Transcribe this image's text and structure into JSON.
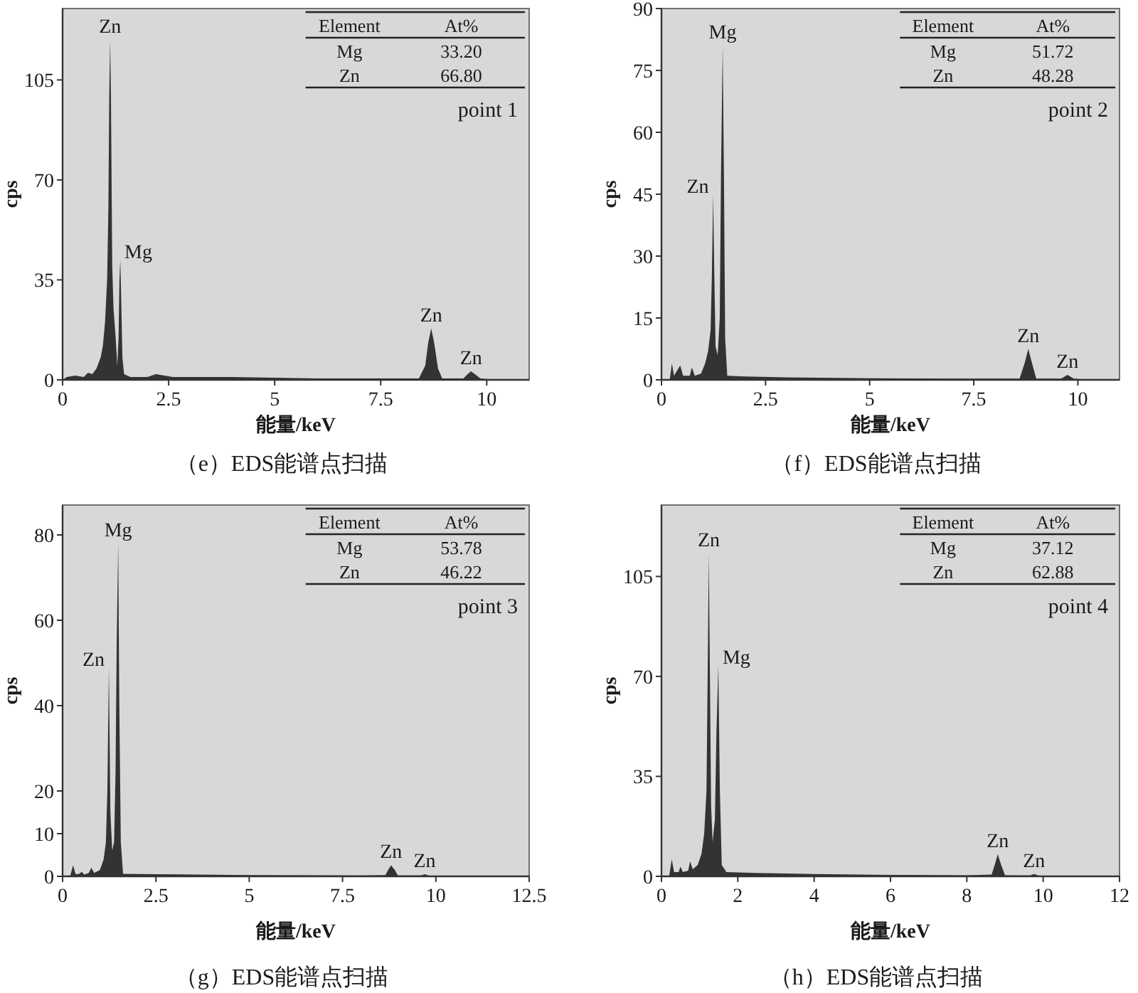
{
  "chart_data": [
    {
      "type": "area",
      "title": "（e）EDS能谱点扫描",
      "xlabel": "能量/keV",
      "ylabel": "cps",
      "color": "#333333",
      "xlim": [
        0,
        11
      ],
      "ylim": [
        0,
        130
      ],
      "xticks": [
        0,
        2.5,
        5,
        7.5,
        10
      ],
      "yticks": [
        0,
        35,
        70,
        105
      ],
      "x": [
        0,
        0.1,
        0.3,
        0.5,
        0.6,
        0.7,
        0.8,
        0.9,
        0.95,
        1.0,
        1.05,
        1.08,
        1.1,
        1.12,
        1.14,
        1.17,
        1.2,
        1.25,
        1.29,
        1.32,
        1.34,
        1.36,
        1.38,
        1.41,
        1.45,
        1.6,
        2.0,
        2.2,
        2.4,
        2.6,
        4,
        6,
        8.4,
        8.55,
        8.62,
        8.69,
        8.76,
        8.85,
        8.95,
        9.45,
        9.55,
        9.63,
        9.72,
        9.85,
        10.2
      ],
      "values": [
        0,
        1,
        1.5,
        1,
        2.5,
        2,
        4,
        8,
        12,
        20,
        35,
        60,
        100,
        119,
        100,
        40,
        25,
        15,
        5,
        15,
        35,
        42,
        30,
        8,
        2,
        1,
        1,
        2,
        1.5,
        1,
        1,
        0.5,
        0.5,
        5,
        13,
        18,
        13,
        4,
        0.5,
        0.5,
        2,
        3,
        2,
        0.5,
        0
      ],
      "annotations": [
        {
          "text": "Zn",
          "x": 1.12,
          "y": 119
        },
        {
          "text": "Mg",
          "x": 1.36,
          "y": 42
        },
        {
          "text": "Zn",
          "x": 8.69,
          "y": 18
        },
        {
          "text": "Zn",
          "x": 9.63,
          "y": 3
        },
        "Element",
        "At%",
        "Mg",
        "33.20",
        "Zn",
        "66.80",
        "point 1"
      ]
    },
    {
      "type": "area",
      "title": "（f）EDS能谱点扫描",
      "xlabel": "能量/keV",
      "ylabel": "cps",
      "color": "#333333",
      "xlim": [
        0,
        11
      ],
      "ylim": [
        0,
        90
      ],
      "xticks": [
        0,
        2.5,
        5,
        7.5,
        10
      ],
      "yticks": [
        0,
        15,
        30,
        45,
        60,
        75,
        90
      ],
      "x": [
        0.2,
        0.25,
        0.3,
        0.45,
        0.52,
        0.68,
        0.73,
        0.8,
        0.95,
        1.05,
        1.12,
        1.18,
        1.21,
        1.24,
        1.27,
        1.3,
        1.35,
        1.4,
        1.43,
        1.47,
        1.5,
        1.53,
        1.58,
        2.0,
        3,
        5,
        7,
        8.6,
        8.72,
        8.81,
        8.9,
        9.0,
        9.6,
        9.75,
        9.9,
        10.3
      ],
      "values": [
        0,
        4,
        1,
        3.5,
        1,
        1,
        3,
        1,
        1.5,
        4,
        7,
        12,
        25,
        45,
        25,
        8,
        6,
        15,
        50,
        81,
        50,
        10,
        1,
        0.8,
        0.6,
        0.4,
        0.3,
        0.3,
        4,
        7.5,
        4,
        0.3,
        0.3,
        1.2,
        0.3,
        0
      ],
      "annotations": [
        {
          "text": "Zn",
          "x": 1.24,
          "y": 45
        },
        {
          "text": "Mg",
          "x": 1.47,
          "y": 81
        },
        {
          "text": "Zn",
          "x": 8.81,
          "y": 7.5
        },
        {
          "text": "Zn",
          "x": 9.75,
          "y": 1.2
        },
        "Element",
        "At%",
        "Mg",
        "51.72",
        "Zn",
        "48.28",
        "point 2"
      ]
    },
    {
      "type": "area",
      "title": "（g）EDS能谱点扫描",
      "xlabel": "能量/keV",
      "ylabel": "cps",
      "color": "#333333",
      "xlim": [
        0,
        12.5
      ],
      "ylim": [
        0,
        87
      ],
      "xticks": [
        0,
        2.5,
        5,
        7.5,
        10,
        12.5
      ],
      "yticks": [
        0,
        10,
        20,
        40,
        60,
        80
      ],
      "x": [
        0.2,
        0.28,
        0.35,
        0.45,
        0.51,
        0.58,
        0.7,
        0.77,
        0.85,
        1.0,
        1.1,
        1.16,
        1.2,
        1.24,
        1.28,
        1.33,
        1.38,
        1.42,
        1.45,
        1.49,
        1.52,
        1.56,
        1.62,
        2.5,
        5,
        8,
        8.65,
        8.72,
        8.8,
        8.9,
        8.98,
        9.6,
        9.7,
        9.85,
        10.2
      ],
      "values": [
        0,
        2.6,
        0.5,
        0.6,
        1.1,
        0.4,
        0.8,
        2,
        0.8,
        1.5,
        4,
        8,
        20,
        49,
        15,
        6,
        8,
        25,
        55,
        78,
        40,
        8,
        0.6,
        0.5,
        0.3,
        0.2,
        0.3,
        1.5,
        2.6,
        1.5,
        0.2,
        0.2,
        0.5,
        0.1,
        0
      ],
      "annotations": [
        {
          "text": "Zn",
          "x": 1.24,
          "y": 49
        },
        {
          "text": "Mg",
          "x": 1.49,
          "y": 78
        },
        {
          "text": "Zn",
          "x": 8.8,
          "y": 2.6
        },
        {
          "text": "Zn",
          "x": 9.7,
          "y": 0.5
        },
        "Element",
        "At%",
        "Mg",
        "53.78",
        "Zn",
        "46.22",
        "point 3"
      ]
    },
    {
      "type": "area",
      "title": "（h）EDS能谱点扫描",
      "xlabel": "能量/keV",
      "ylabel": "cps",
      "color": "#333333",
      "xlim": [
        0,
        12
      ],
      "ylim": [
        0,
        130
      ],
      "xticks": [
        0,
        2,
        4,
        6,
        8,
        10,
        12
      ],
      "yticks": [
        0,
        35,
        70,
        105
      ],
      "x": [
        0.2,
        0.27,
        0.33,
        0.45,
        0.5,
        0.56,
        0.7,
        0.75,
        0.82,
        0.95,
        1.05,
        1.12,
        1.18,
        1.21,
        1.24,
        1.27,
        1.3,
        1.34,
        1.4,
        1.44,
        1.49,
        1.53,
        1.58,
        1.7,
        2.5,
        4,
        6,
        8,
        8.65,
        8.73,
        8.81,
        8.9,
        9.0,
        9.65,
        9.76,
        9.9,
        10.3
      ],
      "values": [
        0,
        6,
        1.5,
        1.5,
        3.4,
        1.5,
        2,
        5.2,
        2.5,
        4,
        8,
        15,
        30,
        70,
        113,
        70,
        25,
        12,
        20,
        50,
        74,
        30,
        4,
        1.5,
        1.2,
        0.8,
        0.5,
        0.4,
        0.6,
        4,
        7.7,
        4,
        0.4,
        0.3,
        0.8,
        0.2,
        0
      ],
      "annotations": [
        {
          "text": "Zn",
          "x": 1.24,
          "y": 113
        },
        {
          "text": "Mg",
          "x": 1.49,
          "y": 74
        },
        {
          "text": "Zn",
          "x": 8.81,
          "y": 7.7
        },
        {
          "text": "Zn",
          "x": 9.76,
          "y": 0.8
        },
        "Element",
        "At%",
        "Mg",
        "37.12",
        "Zn",
        "62.88",
        "point 4"
      ]
    }
  ]
}
